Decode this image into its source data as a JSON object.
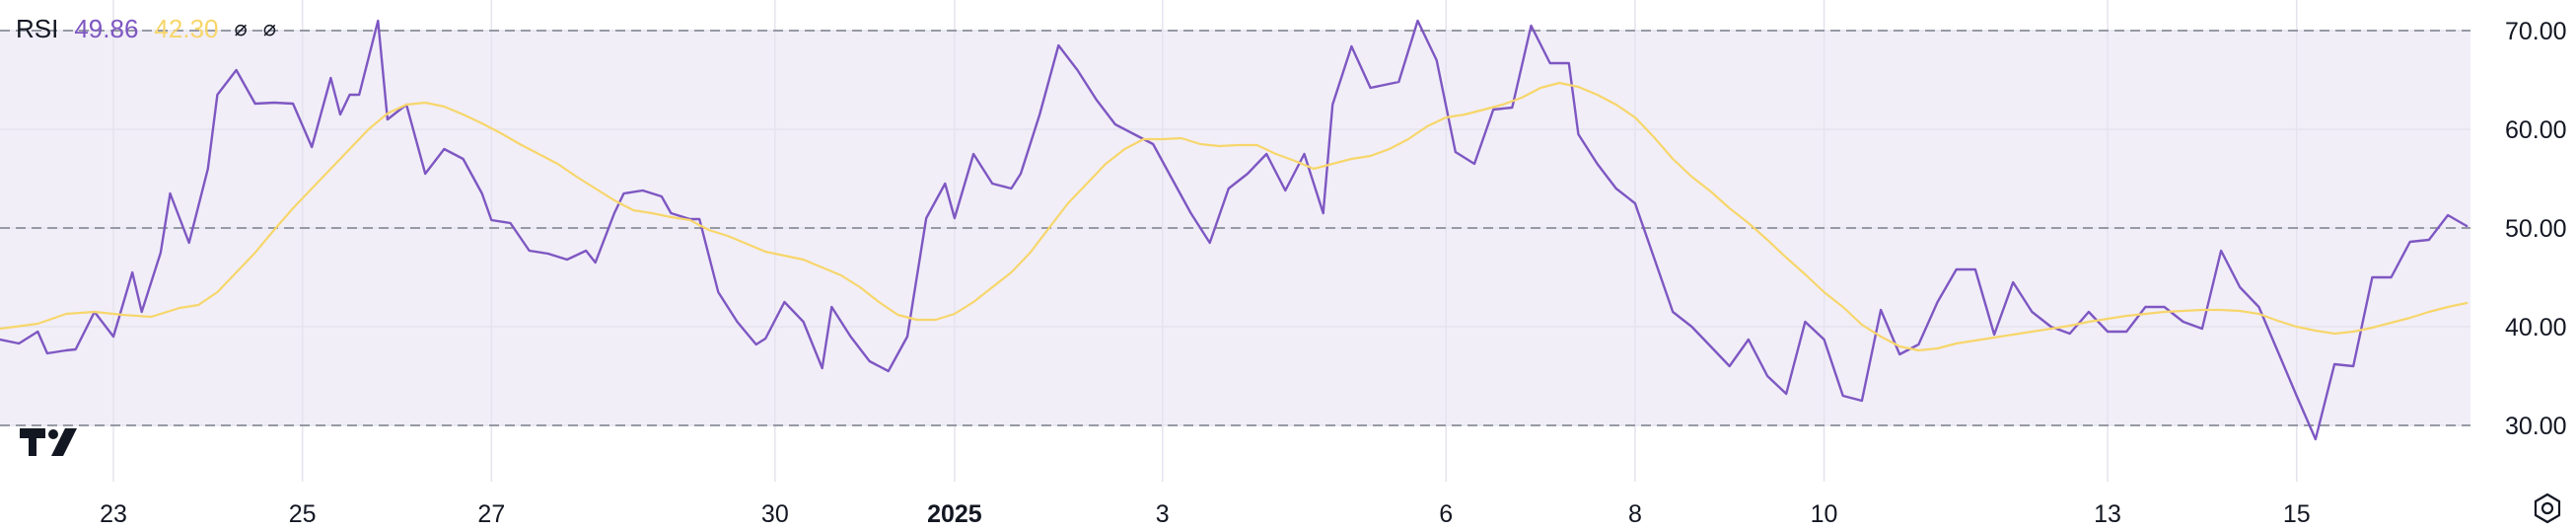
{
  "legend": {
    "indicator": "RSI",
    "rsi_value": "49.86",
    "ma_value": "42.30",
    "hide_rsi_symbol": "⌀",
    "hide_ma_symbol": "⌀"
  },
  "colors": {
    "rsi_line": "#7E57C2",
    "ma_line": "#F7D66B",
    "band_fill": "#F1EEF8",
    "band_line": "#8A8E99",
    "grid": "#E6E3EE",
    "text": "#131722"
  },
  "icons": {
    "logo": "tradingview-logo-icon",
    "settings": "gear-icon"
  },
  "chart_data": {
    "type": "line",
    "y_range": [
      25.5,
      72.5
    ],
    "y_ticks": [
      "70.00",
      "60.00",
      "50.00",
      "40.00",
      "30.00"
    ],
    "y_tick_values": [
      70,
      60,
      50,
      40,
      30
    ],
    "band": {
      "upper": 70,
      "middle": 50,
      "lower": 30
    },
    "grid": true,
    "legend_position": "top-left",
    "x_ticks": [
      {
        "label": "23",
        "index": 12,
        "bold": false
      },
      {
        "label": "25",
        "index": 32,
        "bold": false
      },
      {
        "label": "27",
        "index": 52,
        "bold": false
      },
      {
        "label": "30",
        "index": 82,
        "bold": false
      },
      {
        "label": "2025",
        "index": 101,
        "bold": true
      },
      {
        "label": "3",
        "index": 123,
        "bold": false
      },
      {
        "label": "6",
        "index": 153,
        "bold": false
      },
      {
        "label": "8",
        "index": 173,
        "bold": false
      },
      {
        "label": "10",
        "index": 193,
        "bold": false
      },
      {
        "label": "13",
        "index": 223,
        "bold": false
      },
      {
        "label": "15",
        "index": 243,
        "bold": false
      }
    ],
    "x_count": 250,
    "series": [
      {
        "key": "rsi",
        "color": "#7E57C2",
        "points": [
          [
            0,
            38.7
          ],
          [
            2,
            38.3
          ],
          [
            4,
            39.5
          ],
          [
            5,
            37.3
          ],
          [
            7,
            37.6
          ],
          [
            8,
            37.7
          ],
          [
            10,
            41.5
          ],
          [
            12,
            39
          ],
          [
            14,
            45.5
          ],
          [
            15,
            41.5
          ],
          [
            17,
            47.5
          ],
          [
            18,
            53.5
          ],
          [
            20,
            48.5
          ],
          [
            22,
            56
          ],
          [
            23,
            63.5
          ],
          [
            25,
            66
          ],
          [
            27,
            62.6
          ],
          [
            29,
            62.7
          ],
          [
            31,
            62.6
          ],
          [
            33,
            58.2
          ],
          [
            35,
            65.2
          ],
          [
            36,
            61.5
          ],
          [
            37,
            63.5
          ],
          [
            38,
            63.5
          ],
          [
            40,
            71
          ],
          [
            41,
            61
          ],
          [
            43,
            62.5
          ],
          [
            45,
            55.5
          ],
          [
            47,
            58
          ],
          [
            49,
            57
          ],
          [
            51,
            53.5
          ],
          [
            52,
            50.8
          ],
          [
            54,
            50.5
          ],
          [
            56,
            47.7
          ],
          [
            58,
            47.4
          ],
          [
            60,
            46.8
          ],
          [
            62,
            47.7
          ],
          [
            63,
            46.5
          ],
          [
            65,
            51.5
          ],
          [
            66,
            53.5
          ],
          [
            68,
            53.8
          ],
          [
            70,
            53.2
          ],
          [
            71,
            51.5
          ],
          [
            73,
            50.9
          ],
          [
            74,
            50.9
          ],
          [
            76,
            43.5
          ],
          [
            78,
            40.5
          ],
          [
            80,
            38.2
          ],
          [
            81,
            38.8
          ],
          [
            83,
            42.5
          ],
          [
            85,
            40.5
          ],
          [
            87,
            35.8
          ],
          [
            88,
            42
          ],
          [
            90,
            39
          ],
          [
            92,
            36.5
          ],
          [
            94,
            35.5
          ],
          [
            96,
            39
          ],
          [
            98,
            51
          ],
          [
            100,
            54.5
          ],
          [
            101,
            51
          ],
          [
            103,
            57.5
          ],
          [
            105,
            54.5
          ],
          [
            107,
            54
          ],
          [
            108,
            55.5
          ],
          [
            110,
            61.5
          ],
          [
            112,
            68.5
          ],
          [
            114,
            66
          ],
          [
            116,
            63
          ],
          [
            118,
            60.5
          ],
          [
            120,
            59.5
          ],
          [
            122,
            58.5
          ],
          [
            124,
            55
          ],
          [
            126,
            51.5
          ],
          [
            128,
            48.5
          ],
          [
            130,
            54
          ],
          [
            132,
            55.5
          ],
          [
            134,
            57.5
          ],
          [
            136,
            53.8
          ],
          [
            138,
            57.5
          ],
          [
            140,
            51.5
          ],
          [
            141,
            62.5
          ],
          [
            143,
            68.4
          ],
          [
            145,
            64.2
          ],
          [
            148,
            64.8
          ],
          [
            150,
            71
          ],
          [
            152,
            67
          ],
          [
            154,
            57.7
          ],
          [
            156,
            56.5
          ],
          [
            158,
            62
          ],
          [
            160,
            62.2
          ],
          [
            162,
            70.5
          ],
          [
            164,
            66.7
          ],
          [
            166,
            66.7
          ],
          [
            167,
            59.5
          ],
          [
            169,
            56.5
          ],
          [
            171,
            54
          ],
          [
            173,
            52.5
          ],
          [
            175,
            47
          ],
          [
            177,
            41.5
          ],
          [
            179,
            40
          ],
          [
            181,
            38
          ],
          [
            183,
            36
          ],
          [
            185,
            38.7
          ],
          [
            187,
            35
          ],
          [
            189,
            33.2
          ],
          [
            191,
            40.5
          ],
          [
            193,
            38.7
          ],
          [
            195,
            33
          ],
          [
            197,
            32.5
          ],
          [
            199,
            41.7
          ],
          [
            201,
            37.2
          ],
          [
            203,
            38.2
          ],
          [
            205,
            42.5
          ],
          [
            207,
            45.8
          ],
          [
            209,
            45.8
          ],
          [
            211,
            39.2
          ],
          [
            213,
            44.5
          ],
          [
            215,
            41.5
          ],
          [
            217,
            40
          ],
          [
            219,
            39.3
          ],
          [
            221,
            41.5
          ],
          [
            223,
            39.5
          ],
          [
            225,
            39.5
          ],
          [
            227,
            42
          ],
          [
            229,
            42
          ],
          [
            231,
            40.5
          ],
          [
            233,
            39.8
          ],
          [
            235,
            47.7
          ],
          [
            237,
            44
          ],
          [
            239,
            42
          ],
          [
            241,
            37.5
          ],
          [
            243,
            33
          ],
          [
            245,
            28.6
          ],
          [
            247,
            36.2
          ],
          [
            249,
            36
          ],
          [
            251,
            45
          ],
          [
            253,
            45
          ],
          [
            255,
            48.6
          ],
          [
            257,
            48.8
          ],
          [
            259,
            51.3
          ],
          [
            261,
            50.2
          ]
        ]
      },
      {
        "key": "ma",
        "color": "#F7D66B",
        "points": [
          [
            0,
            39.8
          ],
          [
            4,
            40.3
          ],
          [
            7,
            41.3
          ],
          [
            10,
            41.5
          ],
          [
            13,
            41.2
          ],
          [
            16,
            41
          ],
          [
            19,
            41.9
          ],
          [
            21,
            42.2
          ],
          [
            23,
            43.5
          ],
          [
            25,
            45.5
          ],
          [
            27,
            47.5
          ],
          [
            29,
            49.8
          ],
          [
            31,
            52
          ],
          [
            33,
            54
          ],
          [
            35,
            56
          ],
          [
            37,
            58
          ],
          [
            39,
            60
          ],
          [
            41,
            61.6
          ],
          [
            43,
            62.5
          ],
          [
            45,
            62.7
          ],
          [
            47,
            62.3
          ],
          [
            49,
            61.5
          ],
          [
            51,
            60.6
          ],
          [
            53,
            59.6
          ],
          [
            55,
            58.5
          ],
          [
            57,
            57.5
          ],
          [
            59,
            56.5
          ],
          [
            61,
            55.2
          ],
          [
            63,
            54
          ],
          [
            65,
            52.8
          ],
          [
            67,
            51.8
          ],
          [
            69,
            51.5
          ],
          [
            71,
            51.1
          ],
          [
            73,
            50.8
          ],
          [
            75,
            49.8
          ],
          [
            77,
            49.2
          ],
          [
            79,
            48.4
          ],
          [
            81,
            47.6
          ],
          [
            83,
            47.2
          ],
          [
            85,
            46.8
          ],
          [
            87,
            46
          ],
          [
            89,
            45.2
          ],
          [
            91,
            44
          ],
          [
            93,
            42.5
          ],
          [
            95,
            41.2
          ],
          [
            97,
            40.7
          ],
          [
            99,
            40.7
          ],
          [
            101,
            41.3
          ],
          [
            103,
            42.5
          ],
          [
            105,
            44
          ],
          [
            107,
            45.5
          ],
          [
            109,
            47.5
          ],
          [
            111,
            50
          ],
          [
            113,
            52.5
          ],
          [
            115,
            54.5
          ],
          [
            117,
            56.5
          ],
          [
            119,
            58
          ],
          [
            121,
            59
          ],
          [
            123,
            59
          ],
          [
            125,
            59.1
          ],
          [
            127,
            58.5
          ],
          [
            129,
            58.3
          ],
          [
            131,
            58.4
          ],
          [
            133,
            58.4
          ],
          [
            135,
            57.5
          ],
          [
            137,
            56.8
          ],
          [
            139,
            56
          ],
          [
            141,
            56.5
          ],
          [
            143,
            57
          ],
          [
            145,
            57.3
          ],
          [
            147,
            58
          ],
          [
            149,
            59
          ],
          [
            151,
            60.3
          ],
          [
            153,
            61.2
          ],
          [
            155,
            61.5
          ],
          [
            157,
            62
          ],
          [
            159,
            62.5
          ],
          [
            161,
            63.2
          ],
          [
            163,
            64.2
          ],
          [
            165,
            64.7
          ],
          [
            167,
            64.3
          ],
          [
            169,
            63.5
          ],
          [
            171,
            62.5
          ],
          [
            173,
            61.2
          ],
          [
            175,
            59.2
          ],
          [
            177,
            57
          ],
          [
            179,
            55.2
          ],
          [
            181,
            53.7
          ],
          [
            183,
            52
          ],
          [
            185,
            50.5
          ],
          [
            187,
            48.8
          ],
          [
            189,
            47
          ],
          [
            191,
            45.3
          ],
          [
            193,
            43.5
          ],
          [
            195,
            42
          ],
          [
            197,
            40.2
          ],
          [
            199,
            39
          ],
          [
            201,
            38
          ],
          [
            203,
            37.6
          ],
          [
            205,
            37.8
          ],
          [
            207,
            38.3
          ],
          [
            209,
            38.6
          ],
          [
            211,
            38.9
          ],
          [
            213,
            39.2
          ],
          [
            215,
            39.5
          ],
          [
            217,
            39.8
          ],
          [
            219,
            40.1
          ],
          [
            221,
            40.5
          ],
          [
            223,
            40.8
          ],
          [
            225,
            41.1
          ],
          [
            227,
            41.3
          ],
          [
            229,
            41.5
          ],
          [
            231,
            41.6
          ],
          [
            233,
            41.7
          ],
          [
            235,
            41.7
          ],
          [
            237,
            41.6
          ],
          [
            239,
            41.3
          ],
          [
            241,
            40.6
          ],
          [
            243,
            40
          ],
          [
            245,
            39.6
          ],
          [
            247,
            39.3
          ],
          [
            249,
            39.5
          ],
          [
            251,
            39.9
          ],
          [
            253,
            40.4
          ],
          [
            255,
            40.9
          ],
          [
            257,
            41.5
          ],
          [
            259,
            42
          ],
          [
            261,
            42.4
          ]
        ]
      }
    ]
  }
}
